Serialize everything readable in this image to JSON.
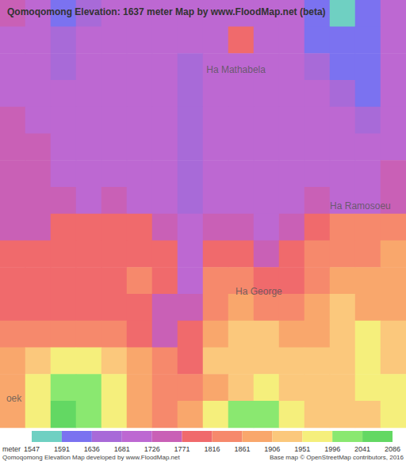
{
  "chart_data": {
    "type": "heatmap",
    "title": "Qomoqomong Elevation: 1637 meter Map by www.FloodMap.net (beta)",
    "legend_title": "meter",
    "legend_levels": [
      1547,
      1591,
      1636,
      1681,
      1726,
      1771,
      1816,
      1861,
      1906,
      1951,
      1996,
      2041,
      2086
    ],
    "legend_colors": [
      "#6fd0c2",
      "#7b72f0",
      "#a86ad8",
      "#bd68d2",
      "#c960b6",
      "#f06a6c",
      "#f6896c",
      "#f9a76c",
      "#fbc87c",
      "#f5ef7c",
      "#8ae870",
      "#63d863"
    ],
    "footer_left": "Qomoqomong Elevation Map developed by www.FloodMap.net",
    "footer_right": "Base map © OpenStreetMap contributors, 2016",
    "grid": false,
    "tick_labels": false,
    "xlim": [
      0,
      16
    ],
    "ylim": [
      0,
      16
    ],
    "cells": [
      [
        1750,
        1700,
        1615,
        1660,
        1700,
        1700,
        1700,
        1700,
        1700,
        1700,
        1700,
        1700,
        1615,
        1570,
        1615,
        1700
      ],
      [
        1700,
        1700,
        1660,
        1700,
        1700,
        1700,
        1700,
        1700,
        1700,
        1795,
        1700,
        1700,
        1615,
        1615,
        1615,
        1700
      ],
      [
        1700,
        1700,
        1660,
        1700,
        1700,
        1700,
        1700,
        1660,
        1700,
        1700,
        1700,
        1700,
        1660,
        1615,
        1615,
        1700
      ],
      [
        1700,
        1700,
        1700,
        1700,
        1700,
        1700,
        1700,
        1660,
        1700,
        1700,
        1700,
        1700,
        1700,
        1660,
        1615,
        1700
      ],
      [
        1750,
        1700,
        1700,
        1700,
        1700,
        1700,
        1700,
        1660,
        1700,
        1700,
        1700,
        1700,
        1700,
        1700,
        1660,
        1700
      ],
      [
        1750,
        1750,
        1700,
        1700,
        1700,
        1700,
        1700,
        1660,
        1700,
        1700,
        1700,
        1700,
        1700,
        1700,
        1700,
        1700
      ],
      [
        1750,
        1750,
        1700,
        1700,
        1700,
        1700,
        1700,
        1660,
        1700,
        1700,
        1700,
        1700,
        1700,
        1700,
        1700,
        1750
      ],
      [
        1750,
        1750,
        1750,
        1700,
        1750,
        1700,
        1700,
        1660,
        1700,
        1700,
        1700,
        1700,
        1750,
        1700,
        1700,
        1750
      ],
      [
        1750,
        1750,
        1795,
        1795,
        1795,
        1795,
        1750,
        1700,
        1750,
        1750,
        1700,
        1750,
        1795,
        1840,
        1840,
        1840
      ],
      [
        1795,
        1795,
        1795,
        1795,
        1795,
        1795,
        1795,
        1700,
        1795,
        1795,
        1750,
        1795,
        1840,
        1840,
        1840,
        1885
      ],
      [
        1795,
        1795,
        1795,
        1795,
        1795,
        1840,
        1795,
        1700,
        1840,
        1840,
        1795,
        1795,
        1840,
        1885,
        1885,
        1885
      ],
      [
        1795,
        1795,
        1795,
        1795,
        1795,
        1795,
        1750,
        1750,
        1840,
        1885,
        1840,
        1840,
        1885,
        1930,
        1885,
        1885
      ],
      [
        1840,
        1840,
        1840,
        1840,
        1840,
        1795,
        1750,
        1795,
        1885,
        1930,
        1930,
        1885,
        1885,
        1930,
        1975,
        1930
      ],
      [
        1885,
        1930,
        1975,
        1975,
        1930,
        1885,
        1840,
        1795,
        1930,
        1930,
        1930,
        1930,
        1930,
        1930,
        1975,
        1930
      ],
      [
        1885,
        1975,
        2020,
        2020,
        1975,
        1885,
        1840,
        1840,
        1885,
        1930,
        1975,
        1930,
        1930,
        1930,
        1975,
        1975
      ],
      [
        1885,
        1975,
        2060,
        2020,
        1975,
        1885,
        1840,
        1885,
        1975,
        2020,
        2020,
        1975,
        1930,
        1930,
        1930,
        1975
      ]
    ],
    "places": [
      {
        "name": "Ha Mathabela",
        "x": 9.3,
        "y": 2.6
      },
      {
        "name": "Ha Ramosoeu",
        "x": 14.2,
        "y": 7.7
      },
      {
        "name": "Ha George",
        "x": 10.2,
        "y": 10.9
      },
      {
        "name": "oek",
        "x": 0.55,
        "y": 14.9
      }
    ]
  }
}
